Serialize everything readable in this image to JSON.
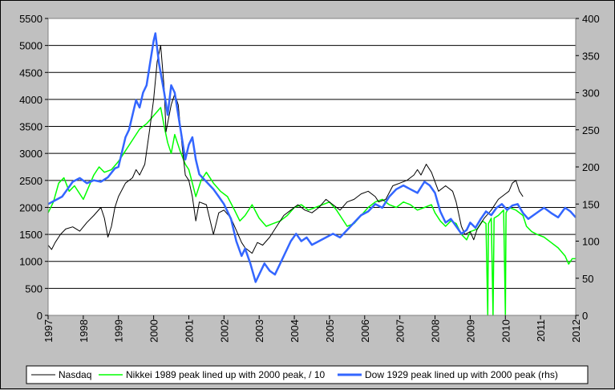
{
  "chart_data": {
    "type": "line",
    "title": "",
    "xlabel": "",
    "ylabel": "",
    "x_ticks": [
      "1997",
      "1998",
      "1999",
      "2000",
      "2001",
      "2002",
      "2003",
      "2004",
      "2005",
      "2006",
      "2007",
      "2008",
      "2009",
      "2010",
      "2011",
      "2012"
    ],
    "xlim": [
      1997,
      2012
    ],
    "y_left": {
      "lim": [
        0,
        5500
      ],
      "ticks": [
        0,
        500,
        1000,
        1500,
        2000,
        2500,
        3000,
        3500,
        4000,
        4500,
        5000,
        5500
      ]
    },
    "y_right": {
      "lim": [
        0,
        400
      ],
      "ticks": [
        0,
        50,
        100,
        150,
        200,
        250,
        300,
        350,
        400
      ]
    },
    "grid": "horizontal",
    "legend_position": "bottom",
    "colors": {
      "nasdaq": "#000000",
      "nikkei": "#00ff00",
      "dow": "#3366ff",
      "plot_bg": "#ffffff",
      "frame_bg": "#c0c0c0"
    },
    "series": [
      {
        "name": "Nasdaq",
        "axis": "left",
        "points": [
          [
            1997.0,
            1300
          ],
          [
            1997.1,
            1220
          ],
          [
            1997.2,
            1350
          ],
          [
            1997.35,
            1500
          ],
          [
            1997.5,
            1600
          ],
          [
            1997.7,
            1640
          ],
          [
            1997.9,
            1560
          ],
          [
            1998.1,
            1720
          ],
          [
            1998.3,
            1850
          ],
          [
            1998.5,
            2000
          ],
          [
            1998.6,
            1800
          ],
          [
            1998.7,
            1450
          ],
          [
            1998.8,
            1650
          ],
          [
            1998.9,
            2000
          ],
          [
            1999.0,
            2200
          ],
          [
            1999.2,
            2450
          ],
          [
            1999.4,
            2550
          ],
          [
            1999.5,
            2700
          ],
          [
            1999.6,
            2600
          ],
          [
            1999.75,
            2800
          ],
          [
            1999.9,
            3500
          ],
          [
            2000.0,
            4000
          ],
          [
            2000.1,
            4700
          ],
          [
            2000.2,
            5000
          ],
          [
            2000.3,
            4200
          ],
          [
            2000.35,
            3400
          ],
          [
            2000.5,
            3900
          ],
          [
            2000.6,
            4100
          ],
          [
            2000.7,
            3900
          ],
          [
            2000.8,
            3200
          ],
          [
            2000.9,
            2600
          ],
          [
            2001.0,
            2500
          ],
          [
            2001.1,
            2200
          ],
          [
            2001.2,
            1750
          ],
          [
            2001.3,
            2100
          ],
          [
            2001.5,
            2050
          ],
          [
            2001.7,
            1500
          ],
          [
            2001.85,
            1900
          ],
          [
            2002.0,
            1950
          ],
          [
            2002.2,
            1800
          ],
          [
            2002.4,
            1500
          ],
          [
            2002.5,
            1350
          ],
          [
            2002.6,
            1250
          ],
          [
            2002.8,
            1150
          ],
          [
            2002.95,
            1350
          ],
          [
            2003.1,
            1300
          ],
          [
            2003.3,
            1450
          ],
          [
            2003.5,
            1650
          ],
          [
            2003.7,
            1850
          ],
          [
            2003.9,
            1950
          ],
          [
            2004.1,
            2050
          ],
          [
            2004.3,
            1950
          ],
          [
            2004.5,
            1900
          ],
          [
            2004.7,
            2000
          ],
          [
            2004.9,
            2150
          ],
          [
            2005.1,
            2050
          ],
          [
            2005.3,
            1950
          ],
          [
            2005.5,
            2100
          ],
          [
            2005.7,
            2150
          ],
          [
            2005.9,
            2250
          ],
          [
            2006.1,
            2300
          ],
          [
            2006.3,
            2200
          ],
          [
            2006.4,
            2100
          ],
          [
            2006.6,
            2150
          ],
          [
            2006.8,
            2400
          ],
          [
            2007.0,
            2450
          ],
          [
            2007.2,
            2500
          ],
          [
            2007.4,
            2600
          ],
          [
            2007.5,
            2700
          ],
          [
            2007.6,
            2600
          ],
          [
            2007.75,
            2800
          ],
          [
            2007.9,
            2650
          ],
          [
            2008.1,
            2300
          ],
          [
            2008.3,
            2400
          ],
          [
            2008.5,
            2300
          ],
          [
            2008.6,
            2100
          ],
          [
            2008.75,
            1650
          ],
          [
            2008.85,
            1500
          ],
          [
            2009.0,
            1550
          ],
          [
            2009.1,
            1400
          ],
          [
            2009.2,
            1600
          ],
          [
            2009.4,
            1800
          ],
          [
            2009.6,
            1950
          ],
          [
            2009.8,
            2150
          ],
          [
            2010.0,
            2250
          ],
          [
            2010.1,
            2300
          ],
          [
            2010.2,
            2450
          ],
          [
            2010.3,
            2500
          ],
          [
            2010.4,
            2300
          ],
          [
            2010.5,
            2200
          ]
        ]
      },
      {
        "name": "Nikkei 1989 peak lined up with 2000 peak, / 10",
        "axis": "left",
        "points": [
          [
            1997.0,
            1900
          ],
          [
            1997.15,
            2100
          ],
          [
            1997.3,
            2450
          ],
          [
            1997.45,
            2550
          ],
          [
            1997.6,
            2300
          ],
          [
            1997.75,
            2400
          ],
          [
            1997.9,
            2250
          ],
          [
            1998.0,
            2150
          ],
          [
            1998.1,
            2300
          ],
          [
            1998.3,
            2600
          ],
          [
            1998.45,
            2750
          ],
          [
            1998.6,
            2650
          ],
          [
            1998.8,
            2700
          ],
          [
            1999.0,
            2850
          ],
          [
            1999.2,
            3050
          ],
          [
            1999.4,
            3250
          ],
          [
            1999.6,
            3450
          ],
          [
            1999.8,
            3550
          ],
          [
            2000.0,
            3700
          ],
          [
            2000.2,
            3850
          ],
          [
            2000.3,
            3500
          ],
          [
            2000.4,
            3200
          ],
          [
            2000.5,
            3000
          ],
          [
            2000.6,
            3350
          ],
          [
            2000.75,
            3050
          ],
          [
            2000.9,
            2800
          ],
          [
            2001.0,
            2700
          ],
          [
            2001.1,
            2450
          ],
          [
            2001.2,
            2200
          ],
          [
            2001.35,
            2500
          ],
          [
            2001.5,
            2650
          ],
          [
            2001.7,
            2450
          ],
          [
            2001.9,
            2300
          ],
          [
            2002.1,
            2200
          ],
          [
            2002.3,
            1950
          ],
          [
            2002.45,
            1750
          ],
          [
            2002.6,
            1850
          ],
          [
            2002.8,
            2050
          ],
          [
            2003.0,
            1800
          ],
          [
            2003.2,
            1650
          ],
          [
            2003.4,
            1700
          ],
          [
            2003.6,
            1750
          ],
          [
            2003.8,
            1850
          ],
          [
            2004.0,
            2000
          ],
          [
            2004.2,
            2050
          ],
          [
            2004.4,
            1950
          ],
          [
            2004.6,
            2000
          ],
          [
            2004.8,
            2050
          ],
          [
            2005.0,
            2100
          ],
          [
            2005.2,
            1950
          ],
          [
            2005.35,
            1800
          ],
          [
            2005.5,
            1650
          ],
          [
            2005.7,
            1700
          ],
          [
            2005.9,
            1850
          ],
          [
            2006.1,
            2000
          ],
          [
            2006.3,
            2100
          ],
          [
            2006.5,
            2150
          ],
          [
            2006.7,
            2050
          ],
          [
            2006.9,
            2000
          ],
          [
            2007.1,
            2100
          ],
          [
            2007.3,
            2050
          ],
          [
            2007.5,
            1950
          ],
          [
            2007.7,
            2000
          ],
          [
            2007.9,
            2050
          ],
          [
            2008.0,
            1900
          ],
          [
            2008.15,
            1750
          ],
          [
            2008.3,
            1650
          ],
          [
            2008.45,
            1750
          ],
          [
            2008.6,
            1700
          ],
          [
            2008.75,
            1500
          ],
          [
            2008.9,
            1400
          ],
          [
            2009.0,
            1550
          ],
          [
            2009.2,
            1600
          ],
          [
            2009.35,
            1750
          ],
          [
            2009.45,
            1700
          ],
          [
            2009.5,
            0
          ],
          [
            2009.52,
            1700
          ],
          [
            2009.6,
            1800
          ],
          [
            2009.65,
            0
          ],
          [
            2009.68,
            1800
          ],
          [
            2009.8,
            1850
          ],
          [
            2009.95,
            1950
          ],
          [
            2010.0,
            0
          ],
          [
            2010.02,
            1900
          ],
          [
            2010.1,
            2000
          ],
          [
            2010.3,
            1950
          ],
          [
            2010.5,
            1850
          ],
          [
            2010.6,
            1650
          ],
          [
            2010.75,
            1550
          ],
          [
            2010.9,
            1500
          ],
          [
            2011.1,
            1450
          ],
          [
            2011.3,
            1350
          ],
          [
            2011.5,
            1250
          ],
          [
            2011.7,
            1100
          ],
          [
            2011.8,
            950
          ],
          [
            2011.9,
            1050
          ],
          [
            2012.0,
            1050
          ]
        ]
      },
      {
        "name": "Dow 1929 peak lined up with 2000 peak (rhs)",
        "axis": "right",
        "points": [
          [
            1997.0,
            150
          ],
          [
            1997.2,
            155
          ],
          [
            1997.4,
            160
          ],
          [
            1997.55,
            170
          ],
          [
            1997.7,
            180
          ],
          [
            1997.9,
            185
          ],
          [
            1998.1,
            178
          ],
          [
            1998.3,
            182
          ],
          [
            1998.5,
            180
          ],
          [
            1998.7,
            186
          ],
          [
            1998.9,
            198
          ],
          [
            1999.0,
            200
          ],
          [
            1999.1,
            220
          ],
          [
            1999.2,
            240
          ],
          [
            1999.3,
            250
          ],
          [
            1999.4,
            270
          ],
          [
            1999.5,
            290
          ],
          [
            1999.6,
            280
          ],
          [
            1999.7,
            300
          ],
          [
            1999.8,
            310
          ],
          [
            1999.9,
            340
          ],
          [
            2000.0,
            370
          ],
          [
            2000.05,
            380
          ],
          [
            2000.15,
            340
          ],
          [
            2000.3,
            300
          ],
          [
            2000.4,
            270
          ],
          [
            2000.5,
            310
          ],
          [
            2000.6,
            300
          ],
          [
            2000.7,
            270
          ],
          [
            2000.8,
            240
          ],
          [
            2000.9,
            210
          ],
          [
            2001.0,
            230
          ],
          [
            2001.1,
            240
          ],
          [
            2001.2,
            210
          ],
          [
            2001.3,
            190
          ],
          [
            2001.5,
            180
          ],
          [
            2001.7,
            170
          ],
          [
            2001.85,
            160
          ],
          [
            2002.0,
            150
          ],
          [
            2002.2,
            130
          ],
          [
            2002.35,
            100
          ],
          [
            2002.5,
            80
          ],
          [
            2002.6,
            90
          ],
          [
            2002.75,
            70
          ],
          [
            2002.9,
            45
          ],
          [
            2003.0,
            55
          ],
          [
            2003.15,
            70
          ],
          [
            2003.3,
            60
          ],
          [
            2003.45,
            55
          ],
          [
            2003.6,
            70
          ],
          [
            2003.75,
            85
          ],
          [
            2003.9,
            100
          ],
          [
            2004.05,
            110
          ],
          [
            2004.2,
            100
          ],
          [
            2004.35,
            105
          ],
          [
            2004.5,
            95
          ],
          [
            2004.7,
            100
          ],
          [
            2004.9,
            105
          ],
          [
            2005.1,
            110
          ],
          [
            2005.3,
            105
          ],
          [
            2005.5,
            115
          ],
          [
            2005.7,
            125
          ],
          [
            2005.9,
            135
          ],
          [
            2006.1,
            140
          ],
          [
            2006.3,
            150
          ],
          [
            2006.5,
            145
          ],
          [
            2006.7,
            160
          ],
          [
            2006.9,
            170
          ],
          [
            2007.1,
            175
          ],
          [
            2007.3,
            170
          ],
          [
            2007.5,
            165
          ],
          [
            2007.7,
            180
          ],
          [
            2007.85,
            175
          ],
          [
            2008.0,
            165
          ],
          [
            2008.15,
            140
          ],
          [
            2008.3,
            125
          ],
          [
            2008.45,
            130
          ],
          [
            2008.6,
            120
          ],
          [
            2008.75,
            110
          ],
          [
            2008.9,
            115
          ],
          [
            2009.0,
            125
          ],
          [
            2009.15,
            118
          ],
          [
            2009.3,
            130
          ],
          [
            2009.45,
            140
          ],
          [
            2009.6,
            135
          ],
          [
            2009.75,
            145
          ],
          [
            2009.9,
            150
          ],
          [
            2010.05,
            142
          ],
          [
            2010.2,
            148
          ],
          [
            2010.35,
            150
          ],
          [
            2010.5,
            138
          ],
          [
            2010.65,
            130
          ],
          [
            2010.8,
            135
          ],
          [
            2010.95,
            140
          ],
          [
            2011.1,
            145
          ],
          [
            2011.3,
            138
          ],
          [
            2011.5,
            132
          ],
          [
            2011.7,
            145
          ],
          [
            2011.85,
            140
          ],
          [
            2012.0,
            132
          ]
        ]
      }
    ]
  }
}
